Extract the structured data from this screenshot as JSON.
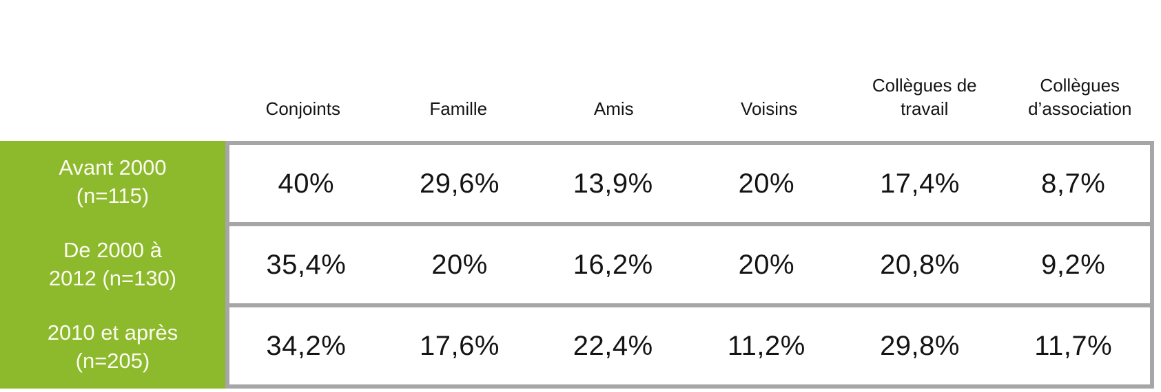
{
  "table": {
    "column_headers": [
      "Conjoints",
      "Famille",
      "Amis",
      "Voisins",
      "Collègues de travail",
      "Collègues d’association"
    ],
    "rows": [
      {
        "label_line1": "Avant 2000",
        "label_line2": "(n=115)",
        "values": [
          "40%",
          "29,6%",
          "13,9%",
          "20%",
          "17,4%",
          "8,7%"
        ]
      },
      {
        "label_line1": "De 2000 à",
        "label_line2": "2012 (n=130)",
        "values": [
          "35,4%",
          "20%",
          "16,2%",
          "20%",
          "20,8%",
          "9,2%"
        ]
      },
      {
        "label_line1": "2010 et après",
        "label_line2": "(n=205)",
        "values": [
          "34,2%",
          "17,6%",
          "22,4%",
          "11,2%",
          "29,8%",
          "11,7%"
        ]
      }
    ]
  },
  "colors": {
    "row_header_bg": "#8db92c",
    "row_header_text": "#fcfcf2",
    "border": "#a6a6a6",
    "text": "#141414"
  },
  "chart_data": {
    "type": "table",
    "columns": [
      "Conjoints",
      "Famille",
      "Amis",
      "Voisins",
      "Collègues de travail",
      "Collègues d’association"
    ],
    "rows": [
      {
        "label": "Avant 2000 (n=115)",
        "values_pct": [
          40,
          29.6,
          13.9,
          20,
          17.4,
          8.7
        ]
      },
      {
        "label": "De 2000 à 2012 (n=130)",
        "values_pct": [
          35.4,
          20,
          16.2,
          20,
          20.8,
          9.2
        ]
      },
      {
        "label": "2010 et après (n=205)",
        "values_pct": [
          34.2,
          17.6,
          22.4,
          11.2,
          29.8,
          11.7
        ]
      }
    ],
    "value_format": "percent (French decimal comma)",
    "layout": "row headers in green left column; column headers above grid; gray grid borders with horizontal separators only"
  }
}
